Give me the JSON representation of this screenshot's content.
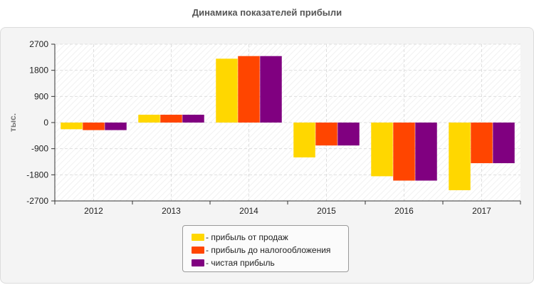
{
  "chart_data": {
    "type": "bar",
    "title": "Динамика показателей прибыли",
    "ylabel": "тыс.",
    "xlabel": "",
    "categories": [
      "2012",
      "2013",
      "2014",
      "2015",
      "2016",
      "2017"
    ],
    "ylim": [
      -2700,
      2700
    ],
    "yticks": [
      2700,
      1800,
      900,
      0,
      -900,
      -1800,
      -2700
    ],
    "yticks_labels": [
      "2700",
      "1800",
      "900",
      "0",
      "-900",
      "-1800",
      "-2700"
    ],
    "grid": true,
    "legend_position": "bottom-center",
    "series": [
      {
        "name": "- прибыль от продаж",
        "color": "#FFD700",
        "values": [
          -230,
          270,
          2200,
          -1200,
          -1850,
          -2330
        ]
      },
      {
        "name": "- прибыль до налогообложения",
        "color": "#FF4500",
        "values": [
          -260,
          270,
          2290,
          -790,
          -2000,
          -1400
        ]
      },
      {
        "name": "- чистая прибыль",
        "color": "#800080",
        "values": [
          -260,
          270,
          2290,
          -790,
          -2000,
          -1400
        ]
      }
    ]
  }
}
